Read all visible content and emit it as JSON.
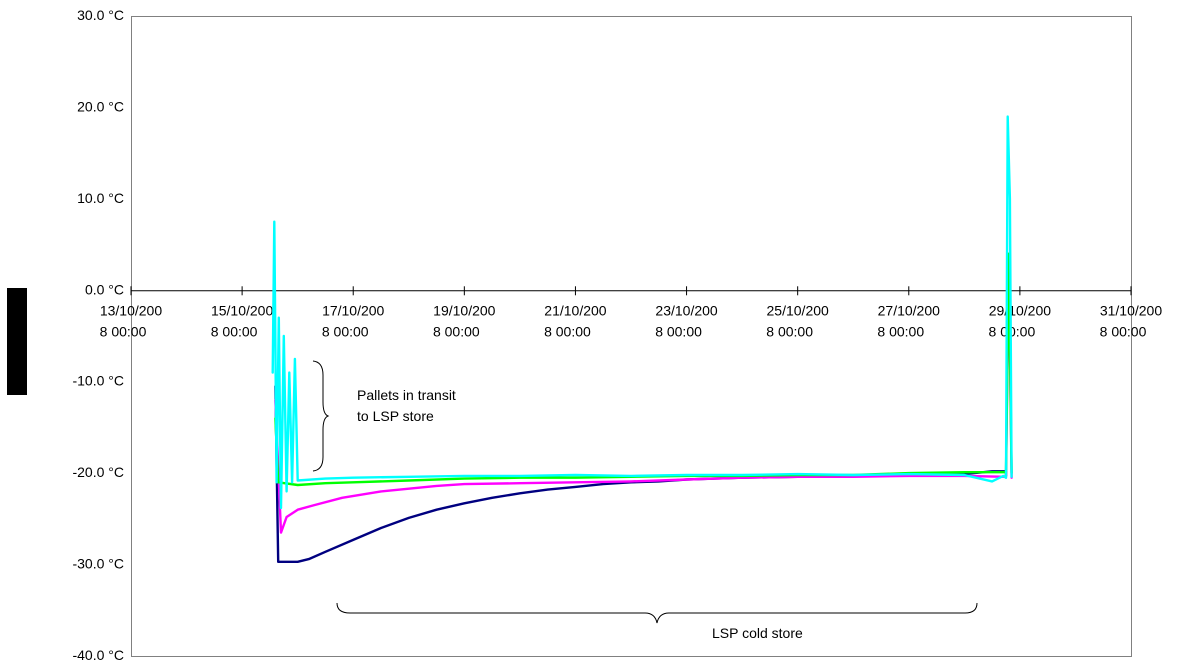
{
  "chart_data": {
    "type": "line",
    "title": "",
    "xlabel": "",
    "ylabel": "",
    "ylim": [
      -40,
      30
    ],
    "y_ticks": [
      {
        "value": 30,
        "label": "30.0 °C"
      },
      {
        "value": 20,
        "label": "20.0 °C"
      },
      {
        "value": 10,
        "label": "10.0 °C"
      },
      {
        "value": 0,
        "label": "0.0 °C"
      },
      {
        "value": -10,
        "label": "-10.0 °C"
      },
      {
        "value": -20,
        "label": "-20.0 °C"
      },
      {
        "value": -30,
        "label": "-30.0 °C"
      },
      {
        "value": -40,
        "label": "-40.0 °C"
      }
    ],
    "xlim": [
      "13/10/200 8 00:00",
      "31/10/200 8 00:00"
    ],
    "x_unit": "days",
    "x_ticks": [
      {
        "day": 13,
        "line1": "13/10/200",
        "line2": "8 00:00"
      },
      {
        "day": 15,
        "line1": "15/10/200",
        "line2": "8 00:00"
      },
      {
        "day": 17,
        "line1": "17/10/200",
        "line2": "8 00:00"
      },
      {
        "day": 19,
        "line1": "19/10/200",
        "line2": "8 00:00"
      },
      {
        "day": 21,
        "line1": "21/10/200",
        "line2": "8 00:00"
      },
      {
        "day": 23,
        "line1": "23/10/200",
        "line2": "8 00:00"
      },
      {
        "day": 25,
        "line1": "25/10/200",
        "line2": "8 00:00"
      },
      {
        "day": 27,
        "line1": "27/10/200",
        "line2": "8 00:00"
      },
      {
        "day": 29,
        "line1": "29/10/200",
        "line2": "8 00:00"
      },
      {
        "day": 31,
        "line1": "31/10/200",
        "line2": "8 00:00"
      }
    ],
    "grid": false,
    "legend": "none",
    "series": [
      {
        "color": "#000080",
        "points": [
          [
            15.6,
            -10.5
          ],
          [
            15.65,
            -29.7
          ],
          [
            16.0,
            -29.7
          ],
          [
            16.2,
            -29.4
          ],
          [
            16.5,
            -28.6
          ],
          [
            17.0,
            -27.3
          ],
          [
            17.5,
            -26.0
          ],
          [
            18.0,
            -24.9
          ],
          [
            18.5,
            -24.0
          ],
          [
            19.0,
            -23.3
          ],
          [
            19.5,
            -22.7
          ],
          [
            20.0,
            -22.2
          ],
          [
            20.5,
            -21.8
          ],
          [
            21.0,
            -21.5
          ],
          [
            21.5,
            -21.2
          ],
          [
            22.0,
            -21.0
          ],
          [
            22.5,
            -20.9
          ],
          [
            23.0,
            -20.7
          ],
          [
            23.5,
            -20.6
          ],
          [
            24.0,
            -20.5
          ],
          [
            25.0,
            -20.4
          ],
          [
            26.0,
            -20.3
          ],
          [
            27.0,
            -20.2
          ],
          [
            28.0,
            -20.1
          ],
          [
            28.5,
            -19.8
          ],
          [
            28.75,
            -19.8
          ],
          [
            28.75,
            -20.3
          ]
        ]
      },
      {
        "color": "#FF00FF",
        "points": [
          [
            15.6,
            -12.0
          ],
          [
            15.7,
            -26.5
          ],
          [
            15.8,
            -24.8
          ],
          [
            16.0,
            -24.0
          ],
          [
            16.3,
            -23.5
          ],
          [
            16.8,
            -22.7
          ],
          [
            17.5,
            -22.0
          ],
          [
            18.0,
            -21.7
          ],
          [
            18.5,
            -21.4
          ],
          [
            19.0,
            -21.2
          ],
          [
            20.0,
            -21.1
          ],
          [
            21.0,
            -21.0
          ],
          [
            22.0,
            -20.9
          ],
          [
            23.0,
            -20.7
          ],
          [
            24.0,
            -20.5
          ],
          [
            25.0,
            -20.4
          ],
          [
            26.0,
            -20.4
          ],
          [
            27.0,
            -20.3
          ],
          [
            28.0,
            -20.3
          ],
          [
            28.75,
            -20.4
          ],
          [
            28.8,
            3.0
          ],
          [
            28.85,
            -20.5
          ]
        ]
      },
      {
        "color": "#00FF00",
        "points": [
          [
            15.6,
            -14.0
          ],
          [
            15.65,
            -21.0
          ],
          [
            16.0,
            -21.3
          ],
          [
            16.5,
            -21.1
          ],
          [
            17.0,
            -21.0
          ],
          [
            18.0,
            -20.8
          ],
          [
            19.0,
            -20.6
          ],
          [
            20.0,
            -20.5
          ],
          [
            21.0,
            -20.5
          ],
          [
            22.0,
            -20.4
          ],
          [
            23.0,
            -20.3
          ],
          [
            24.0,
            -20.3
          ],
          [
            25.0,
            -20.2
          ],
          [
            26.0,
            -20.2
          ],
          [
            27.0,
            -20.0
          ],
          [
            28.0,
            -19.9
          ],
          [
            28.75,
            -19.9
          ],
          [
            28.8,
            4.0
          ],
          [
            28.85,
            -20.0
          ]
        ]
      },
      {
        "color": "#00FFFF",
        "points": [
          [
            15.55,
            -9.0
          ],
          [
            15.58,
            7.5
          ],
          [
            15.62,
            -21.0
          ],
          [
            15.66,
            -3.0
          ],
          [
            15.7,
            -23.8
          ],
          [
            15.75,
            -5.0
          ],
          [
            15.8,
            -22.0
          ],
          [
            15.85,
            -9.0
          ],
          [
            15.9,
            -21.0
          ],
          [
            15.95,
            -7.5
          ],
          [
            16.0,
            -20.8
          ],
          [
            16.5,
            -20.6
          ],
          [
            17.0,
            -20.5
          ],
          [
            18.0,
            -20.4
          ],
          [
            19.0,
            -20.3
          ],
          [
            20.0,
            -20.3
          ],
          [
            21.0,
            -20.2
          ],
          [
            22.0,
            -20.3
          ],
          [
            23.0,
            -20.2
          ],
          [
            24.0,
            -20.2
          ],
          [
            25.0,
            -20.1
          ],
          [
            26.0,
            -20.2
          ],
          [
            27.0,
            -20.1
          ],
          [
            28.0,
            -20.2
          ],
          [
            28.5,
            -20.9
          ],
          [
            28.7,
            -20.3
          ],
          [
            28.75,
            -20.5
          ],
          [
            28.78,
            19.0
          ],
          [
            28.82,
            10.0
          ],
          [
            28.85,
            -20.4
          ]
        ]
      }
    ],
    "annotations": [
      {
        "text_lines": [
          "Pallets in transit",
          "to LSP store"
        ]
      },
      {
        "text_lines": [
          "LSP cold store"
        ]
      }
    ]
  }
}
